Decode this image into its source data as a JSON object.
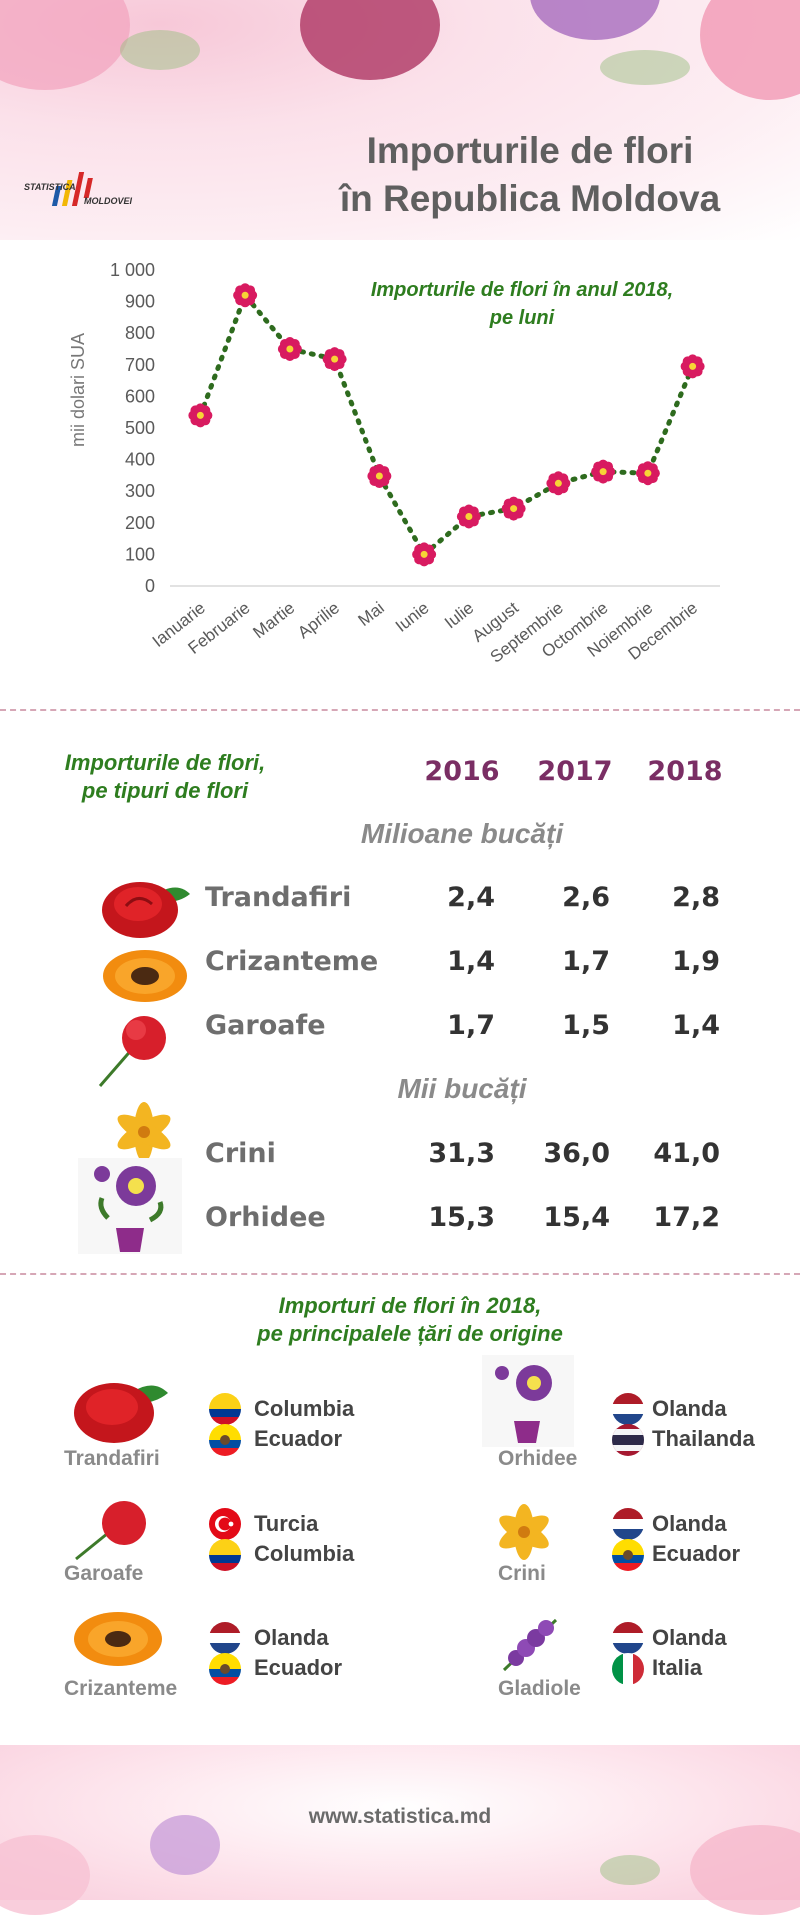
{
  "header": {
    "title_line1": "Importurile de flori",
    "title_line2": "în Republica Moldova",
    "logo_line1": "STATISTICA",
    "logo_line2": "MOLDOVEI"
  },
  "chart_data": {
    "type": "line",
    "title": "Importurile de flori în anul 2018,",
    "subtitle": "pe luni",
    "ylabel": "mii dolari  SUA",
    "xlabel": "",
    "ylim": [
      0,
      1000
    ],
    "yticks": [
      "0",
      "100",
      "200",
      "300",
      "400",
      "500",
      "600",
      "700",
      "800",
      "900",
      "1 000"
    ],
    "categories": [
      "Ianuarie",
      "Februarie",
      "Martie",
      "Aprilie",
      "Mai",
      "Iunie",
      "Iulie",
      "August",
      "Septembrie",
      "Octombrie",
      "Noiembrie",
      "Decembrie"
    ],
    "values": [
      540,
      920,
      750,
      718,
      348,
      100,
      220,
      245,
      325,
      362,
      357,
      695
    ],
    "grid": false,
    "line_color": "#2e6b1e",
    "marker_color": "#d81b60"
  },
  "types": {
    "title_line1": "Importurile de flori,",
    "title_line2": "pe tipuri de flori",
    "years": [
      "2016",
      "2017",
      "2018"
    ],
    "unit_million": "Milioane bucăți",
    "unit_thousand": "Mii bucăți",
    "rows": [
      {
        "name": "Trandafiri",
        "v": [
          "2,4",
          "2,6",
          "2,8"
        ]
      },
      {
        "name": "Crizanteme",
        "v": [
          "1,4",
          "1,7",
          "1,9"
        ]
      },
      {
        "name": "Garoafe",
        "v": [
          "1,7",
          "1,5",
          "1,4"
        ]
      },
      {
        "name": "Crini",
        "v": [
          "31,3",
          "36,0",
          "41,0"
        ]
      },
      {
        "name": "Orhidee",
        "v": [
          "15,3",
          "15,4",
          "17,2"
        ]
      }
    ]
  },
  "origins": {
    "title_line1": "Importuri de flori în 2018,",
    "title_line2": "pe principalele țări de origine",
    "items": [
      {
        "flower": "Trandafiri",
        "countries": [
          "Columbia",
          "Ecuador"
        ]
      },
      {
        "flower": "Orhidee",
        "countries": [
          "Olanda",
          "Thailanda"
        ]
      },
      {
        "flower": "Garoafe",
        "countries": [
          "Turcia",
          "Columbia"
        ]
      },
      {
        "flower": "Crini",
        "countries": [
          "Olanda",
          "Ecuador"
        ]
      },
      {
        "flower": "Crizanteme",
        "countries": [
          "Olanda",
          "Ecuador"
        ]
      },
      {
        "flower": "Gladiole",
        "countries": [
          "Olanda",
          "Italia"
        ]
      }
    ]
  },
  "footer": {
    "website": "www.statistica.md"
  }
}
